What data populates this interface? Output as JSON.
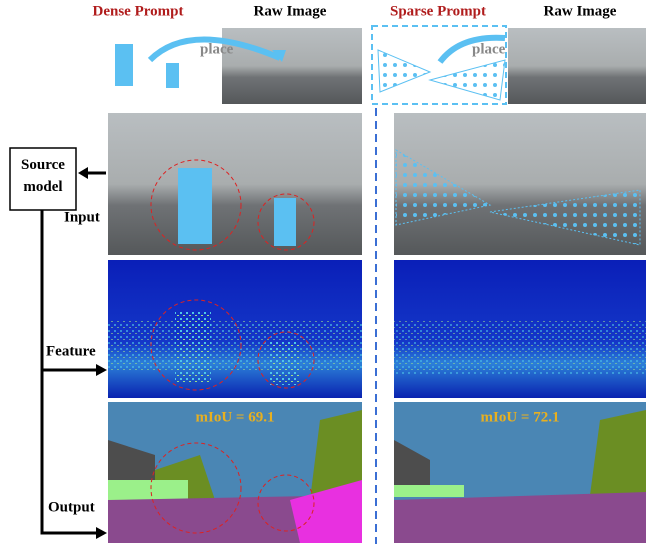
{
  "header": {
    "left_prompt": "Dense Prompt",
    "left_raw": "Raw Image",
    "right_prompt": "Sparse Prompt",
    "right_raw": "Raw Image"
  },
  "place_labels": [
    "place",
    "place"
  ],
  "source_model": "Source model",
  "rows": [
    "Input",
    "Feature",
    "Output"
  ],
  "metrics": [
    "mIoU = 69.1",
    "mIoU = 72.1"
  ]
}
